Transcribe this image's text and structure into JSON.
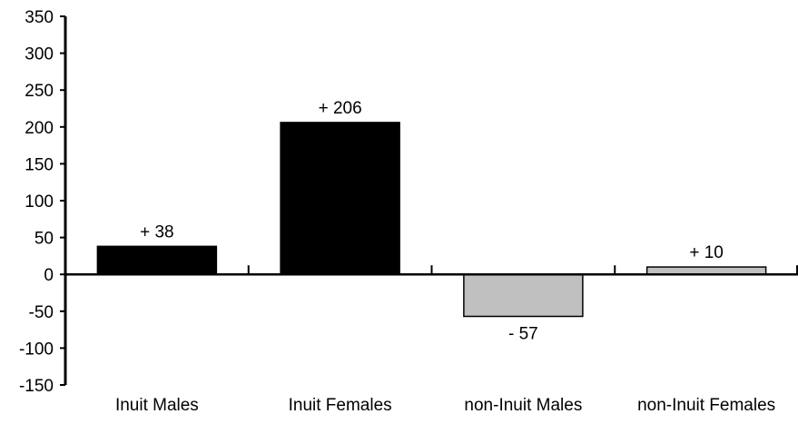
{
  "chart_data": {
    "type": "bar",
    "title": "",
    "xlabel": "",
    "ylabel": "",
    "ylim": [
      -150,
      350
    ],
    "yticks": [
      350,
      300,
      250,
      200,
      150,
      100,
      50,
      0,
      -50,
      -100,
      -150
    ],
    "grid": false,
    "legend": "none",
    "categories": [
      "Inuit Males",
      "Inuit Females",
      "non-Inuit Males",
      "non-Inuit Females"
    ],
    "values": [
      38,
      206,
      -57,
      10
    ],
    "data_labels": [
      "+ 38",
      "+ 206",
      "- 57",
      "+ 10"
    ],
    "bar_colors": [
      "#000000",
      "#000000",
      "#c0c0c0",
      "#c0c0c0"
    ]
  }
}
